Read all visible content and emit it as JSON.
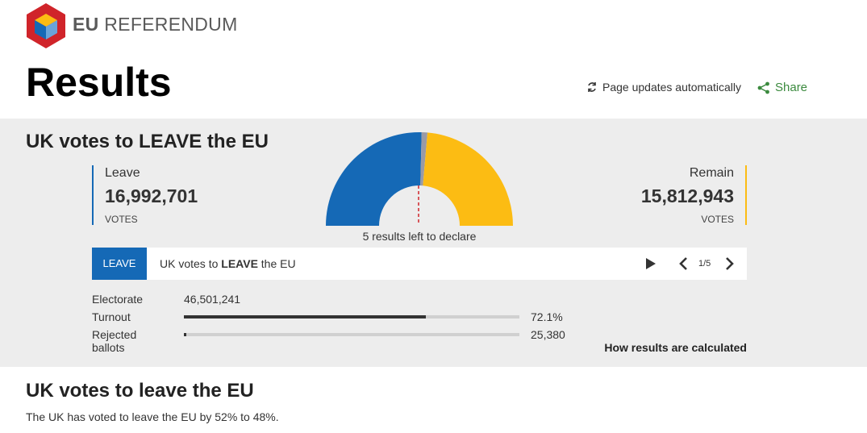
{
  "header": {
    "brand_bold": "EU",
    "brand_rest": "REFERENDUM",
    "title": "Results",
    "updates_text": "Page updates automatically",
    "share_label": "Share"
  },
  "panel": {
    "headline_pre": "UK votes to ",
    "headline_bold": "LEAVE",
    "headline_post": " the EU",
    "leave": {
      "name": "Leave",
      "votes": "16,992,701",
      "unit": "VOTES",
      "color": "#1569b6"
    },
    "remain": {
      "name": "Remain",
      "votes": "15,812,943",
      "unit": "VOTES",
      "color": "#fcbc13"
    },
    "declare_text": "5 results left to declare",
    "gauge": {
      "leave_votes": 16992701,
      "remain_votes": 15812943,
      "undeclared_fraction": 0.02
    }
  },
  "result_bar": {
    "badge": "LEAVE",
    "text_pre": "UK votes to ",
    "text_bold": "LEAVE",
    "text_post": " the EU",
    "pager": "1/5"
  },
  "stats": {
    "electorate_label": "Electorate",
    "electorate_value": "46,501,241",
    "turnout_label": "Turnout",
    "turnout_value": "72.1%",
    "turnout_fraction": 0.721,
    "rejected_label_1": "Rejected",
    "rejected_label_2": "ballots",
    "rejected_value": "25,380",
    "rejected_fraction": 0.008,
    "how_link": "How results are calculated"
  },
  "body": {
    "subhead": "UK votes to leave the EU",
    "summary": "The UK has voted to leave the EU by 52% to 48%."
  },
  "icons": {
    "logo": "eu-referendum-cube-logo",
    "updates": "refresh-icon",
    "share": "share-icon"
  },
  "colors": {
    "leave": "#1569b6",
    "remain": "#fcbc13",
    "share": "#3b8a3e",
    "panel": "#ededed"
  }
}
